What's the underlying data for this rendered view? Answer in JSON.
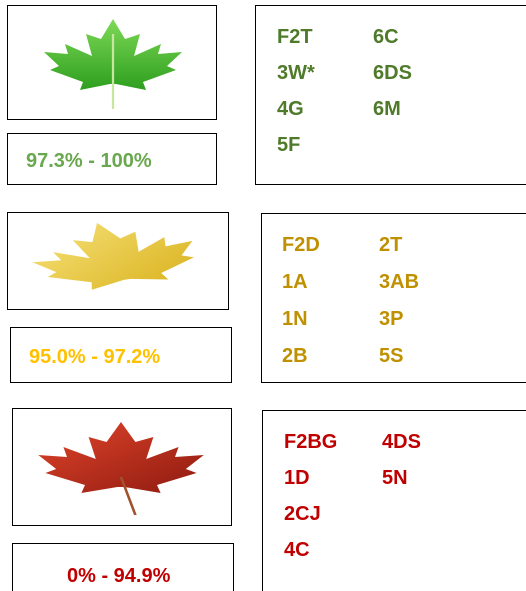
{
  "groups": [
    {
      "range": "97.3% - 100%",
      "columns": [
        [
          "F2T",
          "3W*",
          "4G",
          "5F"
        ],
        [
          "6C",
          "6DS",
          "6M"
        ]
      ]
    },
    {
      "range": "95.0% - 97.2%",
      "columns": [
        [
          "F2D",
          "1A",
          "1N",
          "2B"
        ],
        [
          "2T",
          "3AB",
          "3P",
          "5S"
        ]
      ]
    },
    {
      "range": "0% - 94.9%",
      "columns": [
        [
          "F2BG",
          "1D",
          "2CJ",
          "4C"
        ],
        [
          "4DS",
          "5N"
        ]
      ]
    }
  ]
}
